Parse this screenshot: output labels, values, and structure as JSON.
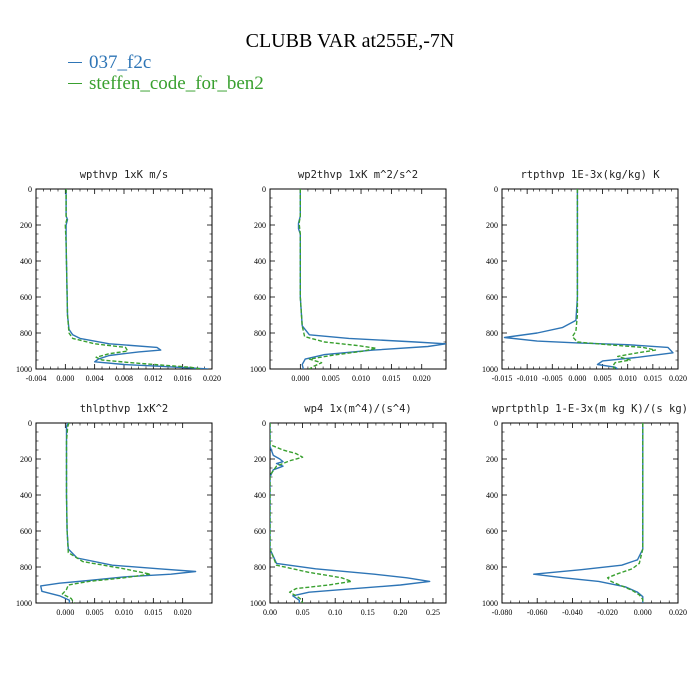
{
  "title": "CLUBB VAR at255E,-7N",
  "legend": [
    {
      "name": "037_f2c",
      "color": "#2e75b6",
      "dash": "solid"
    },
    {
      "name": "steffen_code_for_ben2",
      "color": "#39a02f",
      "dash": "dashed"
    }
  ],
  "chart_data": [
    {
      "type": "line",
      "title": "wpthvp  1xK m/s",
      "xlim": [
        -0.004,
        0.02
      ],
      "ylim": [
        0,
        1000
      ],
      "y_inverted": true,
      "xticks": [
        "-0.004",
        "0.000",
        "0.004",
        "0.008",
        "0.012",
        "0.016",
        "0.020"
      ],
      "xtick_values": [
        -0.004,
        0,
        0.004,
        0.008,
        0.012,
        0.016,
        0.02
      ],
      "yticks": [
        "0",
        "200",
        "400",
        "600",
        "800",
        "1000"
      ],
      "ytick_values": [
        0,
        200,
        400,
        600,
        800,
        1000
      ],
      "series": [
        {
          "name": "037_f2c",
          "points": [
            [
              0.0001,
              0
            ],
            [
              0.0001,
              100
            ],
            [
              0.0001,
              150
            ],
            [
              0.0003,
              170
            ],
            [
              0.0001,
              200
            ],
            [
              0.0001,
              300
            ],
            [
              0.0002,
              500
            ],
            [
              0.0003,
              700
            ],
            [
              0.0005,
              780
            ],
            [
              0.001,
              810
            ],
            [
              0.002,
              830
            ],
            [
              0.006,
              860
            ],
            [
              0.0125,
              880
            ],
            [
              0.013,
              895
            ],
            [
              0.01,
              905
            ],
            [
              0.006,
              925
            ],
            [
              0.0045,
              945
            ],
            [
              0.004,
              960
            ],
            [
              0.008,
              975
            ],
            [
              0.013,
              985
            ],
            [
              0.0195,
              1000
            ]
          ]
        },
        {
          "name": "steffen_code_for_ben2",
          "points": [
            [
              0.0001,
              0
            ],
            [
              0.0001,
              100
            ],
            [
              0.0001,
              150
            ],
            [
              0.0002,
              170
            ],
            [
              0.0,
              200
            ],
            [
              0.0001,
              300
            ],
            [
              0.0002,
              500
            ],
            [
              0.0003,
              700
            ],
            [
              0.0005,
              800
            ],
            [
              0.001,
              830
            ],
            [
              0.004,
              860
            ],
            [
              0.0082,
              880
            ],
            [
              0.0085,
              900
            ],
            [
              0.006,
              915
            ],
            [
              0.0042,
              935
            ],
            [
              0.005,
              950
            ],
            [
              0.009,
              965
            ],
            [
              0.013,
              978
            ],
            [
              0.017,
              990
            ],
            [
              0.0185,
              1000
            ]
          ]
        }
      ]
    },
    {
      "type": "line",
      "title": "wp2thvp  1xK m^2/s^2",
      "xlim": [
        -0.005,
        0.024
      ],
      "ylim": [
        0,
        1000
      ],
      "y_inverted": true,
      "xticks": [
        "0.000",
        "0.005",
        "0.010",
        "0.015",
        "0.020"
      ],
      "xtick_values": [
        0,
        0.005,
        0.01,
        0.015,
        0.02
      ],
      "yticks": [
        "0",
        "200",
        "400",
        "600",
        "800",
        "1000"
      ],
      "ytick_values": [
        0,
        200,
        400,
        600,
        800,
        1000
      ],
      "series": [
        {
          "name": "037_f2c",
          "points": [
            [
              0.0,
              0
            ],
            [
              0.0,
              150
            ],
            [
              -0.0003,
              190
            ],
            [
              -0.0003,
              220
            ],
            [
              0.0,
              250
            ],
            [
              0.0,
              600
            ],
            [
              0.0003,
              760
            ],
            [
              0.0015,
              810
            ],
            [
              0.008,
              830
            ],
            [
              0.019,
              850
            ],
            [
              0.024,
              860
            ],
            [
              0.021,
              875
            ],
            [
              0.012,
              895
            ],
            [
              0.004,
              920
            ],
            [
              0.0008,
              945
            ],
            [
              0.0003,
              975
            ],
            [
              0.0005,
              1000
            ]
          ]
        },
        {
          "name": "steffen_code_for_ben2",
          "points": [
            [
              0.0,
              0
            ],
            [
              0.0,
              150
            ],
            [
              -0.0002,
              190
            ],
            [
              0.0,
              250
            ],
            [
              0.0,
              600
            ],
            [
              0.0003,
              760
            ],
            [
              0.0007,
              820
            ],
            [
              0.004,
              850
            ],
            [
              0.0095,
              870
            ],
            [
              0.0125,
              885
            ],
            [
              0.0105,
              900
            ],
            [
              0.005,
              925
            ],
            [
              0.0015,
              945
            ],
            [
              0.0035,
              965
            ],
            [
              0.0022,
              985
            ],
            [
              0.0015,
              1000
            ]
          ]
        }
      ]
    },
    {
      "type": "line",
      "title": "rtpthvp  1E-3x(kg/kg) K",
      "xlim": [
        -0.015,
        0.02
      ],
      "ylim": [
        0,
        1000
      ],
      "y_inverted": true,
      "xticks": [
        "-0.015",
        "-0.010",
        "-0.005",
        "0.000",
        "0.005",
        "0.010",
        "0.015",
        "0.020"
      ],
      "xtick_values": [
        -0.015,
        -0.01,
        -0.005,
        0,
        0.005,
        0.01,
        0.015,
        0.02
      ],
      "yticks": [
        "0",
        "200",
        "400",
        "600",
        "800",
        "1000"
      ],
      "ytick_values": [
        0,
        200,
        400,
        600,
        800,
        1000
      ],
      "series": [
        {
          "name": "037_f2c",
          "points": [
            [
              0.0,
              0
            ],
            [
              0.0,
              600
            ],
            [
              -0.0003,
              730
            ],
            [
              -0.003,
              770
            ],
            [
              -0.008,
              800
            ],
            [
              -0.0145,
              825
            ],
            [
              -0.008,
              845
            ],
            [
              0.0,
              855
            ],
            [
              0.01,
              865
            ],
            [
              0.018,
              880
            ],
            [
              0.019,
              910
            ],
            [
              0.012,
              935
            ],
            [
              0.005,
              955
            ],
            [
              0.004,
              975
            ],
            [
              0.0075,
              990
            ],
            [
              0.008,
              1000
            ]
          ]
        },
        {
          "name": "steffen_code_for_ben2",
          "points": [
            [
              0.0,
              0
            ],
            [
              0.0,
              700
            ],
            [
              -0.0003,
              790
            ],
            [
              -0.001,
              820
            ],
            [
              0.0,
              850
            ],
            [
              0.006,
              865
            ],
            [
              0.013,
              880
            ],
            [
              0.0155,
              895
            ],
            [
              0.012,
              910
            ],
            [
              0.008,
              930
            ],
            [
              0.0105,
              950
            ],
            [
              0.0075,
              965
            ],
            [
              0.007,
              985
            ],
            [
              0.0075,
              1000
            ]
          ]
        }
      ]
    },
    {
      "type": "line",
      "title": "thlpthvp  1xK^2",
      "xlim": [
        -0.005,
        0.025
      ],
      "ylim": [
        0,
        1000
      ],
      "y_inverted": true,
      "xticks": [
        "0.000",
        "0.005",
        "0.010",
        "0.015",
        "0.020"
      ],
      "xtick_values": [
        0,
        0.005,
        0.01,
        0.015,
        0.02
      ],
      "yticks": [
        "0",
        "200",
        "400",
        "600",
        "800",
        "1000"
      ],
      "ytick_values": [
        0,
        200,
        400,
        600,
        800,
        1000
      ],
      "series": [
        {
          "name": "037_f2c",
          "points": [
            [
              0.0004,
              0
            ],
            [
              0.0002,
              20
            ],
            [
              0.0002,
              100
            ],
            [
              0.0002,
              400
            ],
            [
              0.0003,
              600
            ],
            [
              0.0005,
              700
            ],
            [
              0.002,
              750
            ],
            [
              0.008,
              790
            ],
            [
              0.016,
              810
            ],
            [
              0.0222,
              825
            ],
            [
              0.018,
              840
            ],
            [
              0.01,
              855
            ],
            [
              0.004,
              875
            ],
            [
              -0.001,
              890
            ],
            [
              -0.0042,
              905
            ],
            [
              -0.004,
              935
            ],
            [
              -0.001,
              960
            ],
            [
              0.0007,
              985
            ],
            [
              0.0007,
              1000
            ]
          ]
        },
        {
          "name": "steffen_code_for_ben2",
          "points": [
            [
              0.0006,
              0
            ],
            [
              0.0004,
              20
            ],
            [
              0.0002,
              100
            ],
            [
              0.0002,
              400
            ],
            [
              0.0003,
              600
            ],
            [
              0.0005,
              720
            ],
            [
              0.003,
              770
            ],
            [
              0.01,
              810
            ],
            [
              0.0145,
              840
            ],
            [
              0.01,
              860
            ],
            [
              0.004,
              880
            ],
            [
              0.0005,
              900
            ],
            [
              0.0002,
              925
            ],
            [
              -0.0005,
              950
            ],
            [
              0.001,
              975
            ],
            [
              0.0015,
              1000
            ]
          ]
        }
      ]
    },
    {
      "type": "line",
      "title": "wp4  1x(m^4)/(s^4)",
      "xlim": [
        0,
        0.27
      ],
      "ylim": [
        0,
        1000
      ],
      "y_inverted": true,
      "xticks": [
        "0.00",
        "0.05",
        "0.10",
        "0.15",
        "0.20",
        "0.25"
      ],
      "xtick_values": [
        0,
        0.05,
        0.1,
        0.15,
        0.2,
        0.25
      ],
      "yticks": [
        "0",
        "200",
        "400",
        "600",
        "800",
        "1000"
      ],
      "ytick_values": [
        0,
        200,
        400,
        600,
        800,
        1000
      ],
      "series": [
        {
          "name": "037_f2c",
          "points": [
            [
              0.0,
              0
            ],
            [
              0.0,
              130
            ],
            [
              0.005,
              180
            ],
            [
              0.015,
              200
            ],
            [
              0.02,
              215
            ],
            [
              0.01,
              225
            ],
            [
              0.02,
              240
            ],
            [
              0.005,
              260
            ],
            [
              0.0,
              300
            ],
            [
              0.0,
              700
            ],
            [
              0.01,
              780
            ],
            [
              0.07,
              810
            ],
            [
              0.16,
              840
            ],
            [
              0.21,
              860
            ],
            [
              0.245,
              880
            ],
            [
              0.2,
              900
            ],
            [
              0.13,
              920
            ],
            [
              0.06,
              940
            ],
            [
              0.035,
              960
            ],
            [
              0.045,
              985
            ],
            [
              0.045,
              1000
            ]
          ]
        },
        {
          "name": "steffen_code_for_ben2",
          "points": [
            [
              0.0,
              0
            ],
            [
              0.0,
              120
            ],
            [
              0.02,
              150
            ],
            [
              0.04,
              170
            ],
            [
              0.05,
              190
            ],
            [
              0.03,
              210
            ],
            [
              0.01,
              240
            ],
            [
              0.002,
              280
            ],
            [
              0.0,
              300
            ],
            [
              0.0,
              700
            ],
            [
              0.01,
              790
            ],
            [
              0.06,
              830
            ],
            [
              0.11,
              860
            ],
            [
              0.125,
              880
            ],
            [
              0.09,
              900
            ],
            [
              0.04,
              920
            ],
            [
              0.03,
              940
            ],
            [
              0.04,
              960
            ],
            [
              0.048,
              980
            ],
            [
              0.05,
              1000
            ]
          ]
        }
      ]
    },
    {
      "type": "line",
      "title": "wprtpthlp  1-E-3x(m kg K)/(s kg)",
      "xlim": [
        -0.08,
        0.02
      ],
      "ylim": [
        0,
        1000
      ],
      "y_inverted": true,
      "xticks": [
        "-0.080",
        "-0.060",
        "-0.040",
        "-0.020",
        "0.000",
        "0.020"
      ],
      "xtick_values": [
        -0.08,
        -0.06,
        -0.04,
        -0.02,
        0,
        0.02
      ],
      "yticks": [
        "0",
        "200",
        "400",
        "600",
        "800",
        "1000"
      ],
      "ytick_values": [
        0,
        200,
        400,
        600,
        800,
        1000
      ],
      "series": [
        {
          "name": "037_f2c",
          "points": [
            [
              0.0,
              0
            ],
            [
              0.0,
              700
            ],
            [
              -0.003,
              760
            ],
            [
              -0.012,
              790
            ],
            [
              -0.035,
              815
            ],
            [
              -0.062,
              840
            ],
            [
              -0.045,
              860
            ],
            [
              -0.025,
              880
            ],
            [
              -0.01,
              910
            ],
            [
              -0.003,
              940
            ],
            [
              0.0,
              965
            ],
            [
              0.0,
              1000
            ]
          ]
        },
        {
          "name": "steffen_code_for_ben2",
          "points": [
            [
              0.0,
              0
            ],
            [
              0.0,
              700
            ],
            [
              -0.002,
              780
            ],
            [
              -0.006,
              810
            ],
            [
              -0.015,
              840
            ],
            [
              -0.02,
              860
            ],
            [
              -0.018,
              880
            ],
            [
              -0.012,
              905
            ],
            [
              -0.006,
              930
            ],
            [
              -0.002,
              955
            ],
            [
              0.0,
              980
            ],
            [
              0.0,
              1000
            ]
          ]
        }
      ]
    }
  ]
}
